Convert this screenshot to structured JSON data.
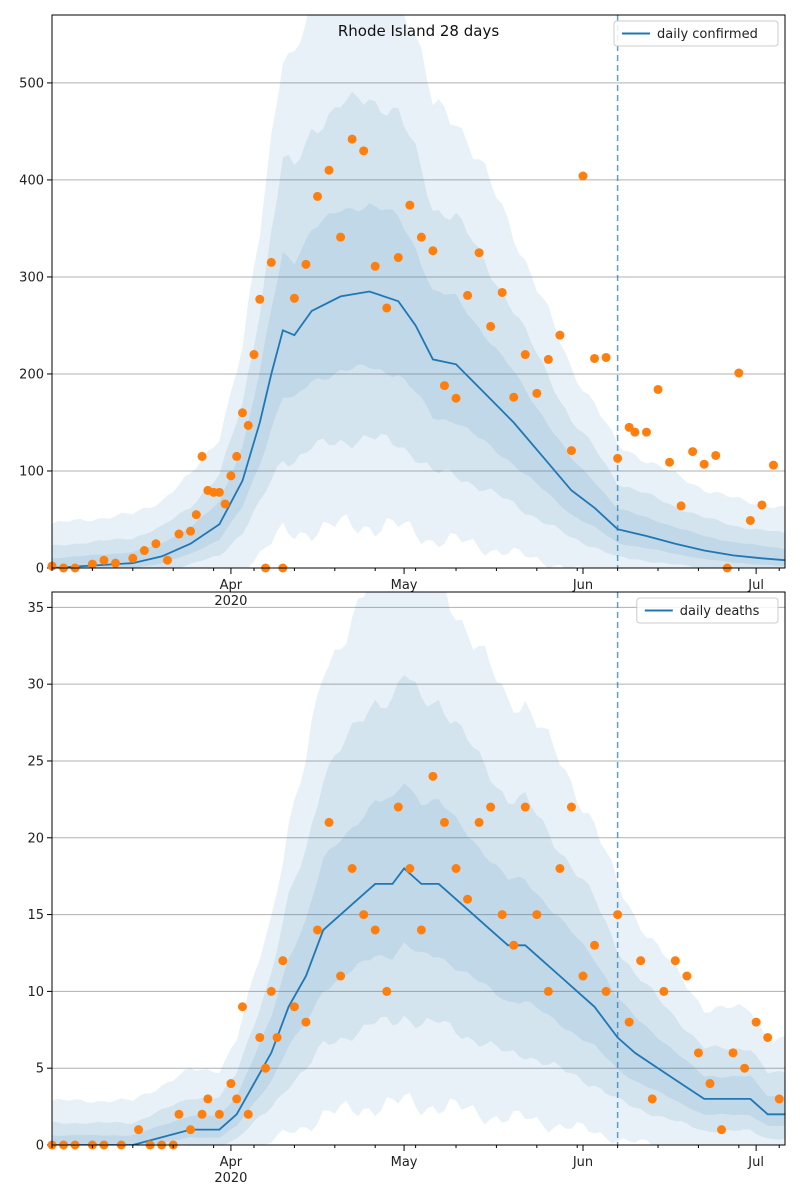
{
  "colors": {
    "line": "#1f77b4",
    "band": "#1f77b4",
    "points": "#ff7f0e",
    "forecast_divider": "#1f77b4",
    "grid": "#b0b0b0"
  },
  "chart_data": [
    {
      "type": "line",
      "title": "Rhode Island 28 days",
      "legend": [
        "daily confirmed"
      ],
      "legend_position": "top-right",
      "grid": "y",
      "ylim": [
        0,
        570
      ],
      "xlim": [
        "2020-03-01",
        "2020-07-06"
      ],
      "y_ticks": [
        0,
        100,
        200,
        300,
        400,
        500
      ],
      "x_ticks": [
        {
          "date": "2020-04-01",
          "label": "Apr",
          "sublabel": "2020"
        },
        {
          "date": "2020-05-01",
          "label": "May"
        },
        {
          "date": "2020-06-01",
          "label": "Jun"
        },
        {
          "date": "2020-07-01",
          "label": "Jul"
        }
      ],
      "forecast_start": "2020-06-07",
      "series": [
        {
          "name": "daily confirmed",
          "kind": "line",
          "x": [
            "2020-03-01",
            "2020-03-15",
            "2020-03-20",
            "2020-03-25",
            "2020-03-30",
            "2020-04-03",
            "2020-04-06",
            "2020-04-08",
            "2020-04-10",
            "2020-04-12",
            "2020-04-15",
            "2020-04-20",
            "2020-04-25",
            "2020-04-30",
            "2020-05-03",
            "2020-05-06",
            "2020-05-10",
            "2020-05-15",
            "2020-05-20",
            "2020-05-25",
            "2020-05-30",
            "2020-06-03",
            "2020-06-07",
            "2020-06-12",
            "2020-06-17",
            "2020-06-22",
            "2020-06-27",
            "2020-07-02",
            "2020-07-06"
          ],
          "y": [
            0,
            5,
            12,
            25,
            45,
            90,
            150,
            200,
            245,
            240,
            265,
            280,
            285,
            275,
            250,
            215,
            210,
            180,
            150,
            115,
            80,
            62,
            40,
            33,
            25,
            18,
            13,
            10,
            8
          ]
        },
        {
          "name": "",
          "kind": "scatter",
          "x": [
            "2020-03-01",
            "2020-03-03",
            "2020-03-05",
            "2020-03-08",
            "2020-03-10",
            "2020-03-12",
            "2020-03-15",
            "2020-03-17",
            "2020-03-19",
            "2020-03-21",
            "2020-03-23",
            "2020-03-25",
            "2020-03-26",
            "2020-03-27",
            "2020-03-28",
            "2020-03-29",
            "2020-03-30",
            "2020-03-31",
            "2020-04-01",
            "2020-04-02",
            "2020-04-03",
            "2020-04-04",
            "2020-04-05",
            "2020-04-06",
            "2020-04-07",
            "2020-04-08",
            "2020-04-10",
            "2020-04-12",
            "2020-04-14",
            "2020-04-16",
            "2020-04-18",
            "2020-04-20",
            "2020-04-22",
            "2020-04-24",
            "2020-04-26",
            "2020-04-28",
            "2020-04-30",
            "2020-05-02",
            "2020-05-04",
            "2020-05-06",
            "2020-05-08",
            "2020-05-10",
            "2020-05-12",
            "2020-05-14",
            "2020-05-16",
            "2020-05-18",
            "2020-05-20",
            "2020-05-22",
            "2020-05-24",
            "2020-05-26",
            "2020-05-28",
            "2020-05-30",
            "2020-06-01",
            "2020-06-03",
            "2020-06-05",
            "2020-06-07",
            "2020-06-09",
            "2020-06-10",
            "2020-06-12",
            "2020-06-14",
            "2020-06-16",
            "2020-06-18",
            "2020-06-20",
            "2020-06-22",
            "2020-06-24",
            "2020-06-26",
            "2020-06-28",
            "2020-06-30",
            "2020-07-02",
            "2020-07-04"
          ],
          "y": [
            2,
            0,
            0,
            4,
            8,
            5,
            10,
            18,
            25,
            8,
            35,
            38,
            55,
            115,
            80,
            78,
            78,
            66,
            95,
            115,
            160,
            147,
            220,
            277,
            0,
            315,
            0,
            278,
            313,
            383,
            410,
            341,
            442,
            430,
            311,
            268,
            320,
            374,
            341,
            327,
            188,
            175,
            281,
            325,
            249,
            284,
            176,
            220,
            180,
            215,
            240,
            121,
            404,
            216,
            217,
            113,
            145,
            140,
            140,
            184,
            109,
            64,
            120,
            107,
            116,
            0,
            201,
            49,
            65,
            106
          ]
        }
      ]
    },
    {
      "type": "line",
      "title": "",
      "legend": [
        "daily deaths"
      ],
      "legend_position": "top-right",
      "grid": "y",
      "ylim": [
        0,
        36
      ],
      "xlim": [
        "2020-03-01",
        "2020-07-06"
      ],
      "y_ticks": [
        0,
        5,
        10,
        15,
        20,
        25,
        30,
        35
      ],
      "x_ticks": [
        {
          "date": "2020-04-01",
          "label": "Apr",
          "sublabel": "2020"
        },
        {
          "date": "2020-05-01",
          "label": "May"
        },
        {
          "date": "2020-06-01",
          "label": "Jun"
        },
        {
          "date": "2020-07-01",
          "label": "Jul"
        }
      ],
      "forecast_start": "2020-06-07",
      "series": [
        {
          "name": "daily deaths",
          "kind": "line",
          "x": [
            "2020-03-01",
            "2020-03-15",
            "2020-03-25",
            "2020-03-30",
            "2020-04-02",
            "2020-04-05",
            "2020-04-08",
            "2020-04-11",
            "2020-04-14",
            "2020-04-17",
            "2020-04-20",
            "2020-04-23",
            "2020-04-26",
            "2020-04-29",
            "2020-05-01",
            "2020-05-04",
            "2020-05-07",
            "2020-05-10",
            "2020-05-13",
            "2020-05-16",
            "2020-05-19",
            "2020-05-22",
            "2020-05-25",
            "2020-05-28",
            "2020-05-31",
            "2020-06-03",
            "2020-06-07",
            "2020-06-10",
            "2020-06-14",
            "2020-06-18",
            "2020-06-22",
            "2020-06-26",
            "2020-06-30",
            "2020-07-03",
            "2020-07-06"
          ],
          "y": [
            0,
            0,
            1,
            1,
            2,
            4,
            6,
            9,
            11,
            14,
            15,
            16,
            17,
            17,
            18,
            17,
            17,
            16,
            15,
            14,
            13,
            13,
            12,
            11,
            10,
            9,
            7,
            6,
            5,
            4,
            3,
            3,
            3,
            2,
            2
          ]
        },
        {
          "name": "",
          "kind": "scatter",
          "x": [
            "2020-03-01",
            "2020-03-03",
            "2020-03-05",
            "2020-03-08",
            "2020-03-10",
            "2020-03-13",
            "2020-03-16",
            "2020-03-18",
            "2020-03-20",
            "2020-03-22",
            "2020-03-23",
            "2020-03-25",
            "2020-03-27",
            "2020-03-28",
            "2020-03-30",
            "2020-04-01",
            "2020-04-02",
            "2020-04-03",
            "2020-04-04",
            "2020-04-06",
            "2020-04-07",
            "2020-04-08",
            "2020-04-09",
            "2020-04-10",
            "2020-04-12",
            "2020-04-14",
            "2020-04-16",
            "2020-04-18",
            "2020-04-20",
            "2020-04-22",
            "2020-04-24",
            "2020-04-26",
            "2020-04-28",
            "2020-04-30",
            "2020-05-02",
            "2020-05-04",
            "2020-05-06",
            "2020-05-08",
            "2020-05-10",
            "2020-05-12",
            "2020-05-14",
            "2020-05-16",
            "2020-05-18",
            "2020-05-20",
            "2020-05-22",
            "2020-05-24",
            "2020-05-26",
            "2020-05-28",
            "2020-05-30",
            "2020-06-01",
            "2020-06-03",
            "2020-06-05",
            "2020-06-07",
            "2020-06-09",
            "2020-06-11",
            "2020-06-13",
            "2020-06-15",
            "2020-06-17",
            "2020-06-19",
            "2020-06-21",
            "2020-06-23",
            "2020-06-25",
            "2020-06-27",
            "2020-06-29",
            "2020-07-01",
            "2020-07-03",
            "2020-07-05"
          ],
          "y": [
            0,
            0,
            0,
            0,
            0,
            0,
            1,
            0,
            0,
            0,
            2,
            1,
            2,
            3,
            2,
            4,
            3,
            9,
            2,
            7,
            5,
            10,
            7,
            12,
            9,
            8,
            14,
            21,
            11,
            18,
            15,
            14,
            10,
            22,
            18,
            14,
            24,
            21,
            18,
            16,
            21,
            22,
            15,
            13,
            22,
            15,
            10,
            18,
            22,
            11,
            13,
            10,
            15,
            8,
            12,
            3,
            10,
            12,
            11,
            6,
            4,
            1,
            6,
            5,
            8,
            7,
            3
          ]
        }
      ]
    }
  ]
}
